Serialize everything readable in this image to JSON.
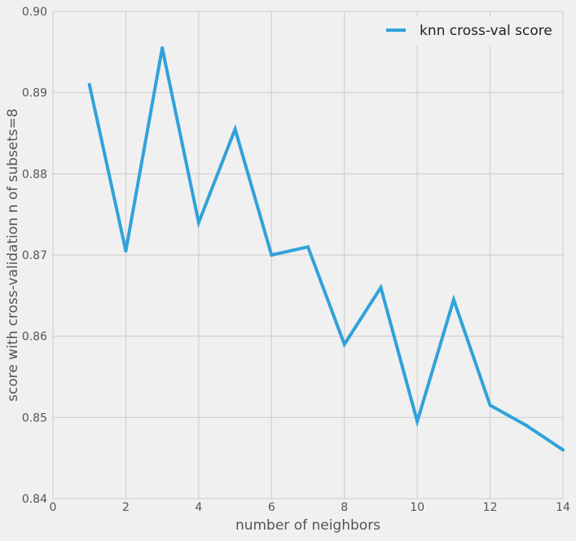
{
  "chart_data": {
    "type": "line",
    "title": "",
    "xlabel": "number of neighbors",
    "ylabel": "score with cross-validation n of subsets=8",
    "xlim": [
      0,
      14
    ],
    "ylim": [
      0.84,
      0.9
    ],
    "xticks": [
      "0",
      "2",
      "4",
      "6",
      "8",
      "10",
      "12",
      "14"
    ],
    "yticks": [
      "0.84",
      "0.85",
      "0.86",
      "0.87",
      "0.88",
      "0.89",
      "0.90"
    ],
    "grid": true,
    "legend_position": "top-right",
    "series": [
      {
        "name": "knn cross-val score",
        "color": "#30a2da",
        "x": [
          1,
          2,
          3,
          4,
          5,
          6,
          7,
          8,
          9,
          10,
          11,
          12,
          13,
          14
        ],
        "y": [
          0.891,
          0.8705,
          0.8955,
          0.874,
          0.8855,
          0.87,
          0.871,
          0.859,
          0.866,
          0.8495,
          0.8645,
          0.8515,
          0.849,
          0.846
        ]
      }
    ]
  },
  "colors": {
    "background": "#f0f0f0",
    "grid": "#cbcbcb",
    "text": "#555555",
    "line": "#30a2da"
  }
}
